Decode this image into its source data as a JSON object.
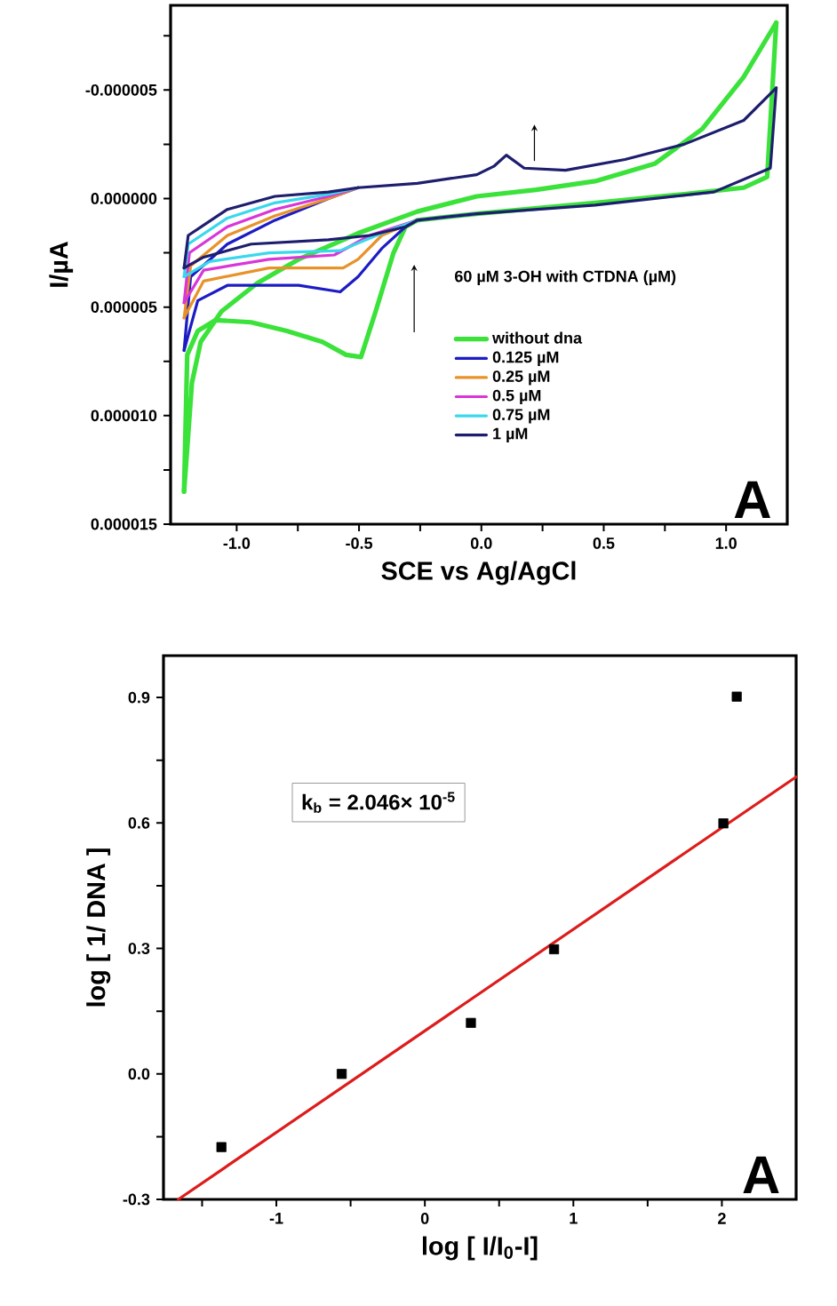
{
  "chart_data": [
    {
      "type": "line",
      "xlabel": "SCE vs Ag/AgCl",
      "ylabel": "I/µA",
      "legend_title": "60 µM 3-OH with CTDNA (µM)",
      "legend": "bottom right",
      "annotations": [
        "A"
      ],
      "xlim": [
        -1.27,
        1.25
      ],
      "ylim": [
        1.5e-05,
        -8.9e-06
      ],
      "xticks": [
        {
          "value": -1.0,
          "label": "-1.0"
        },
        {
          "value": -0.75,
          "label": null
        },
        {
          "value": -0.5,
          "label": "-0.5"
        },
        {
          "value": -0.25,
          "label": null
        },
        {
          "value": 0.0,
          "label": "0.0"
        },
        {
          "value": 0.25,
          "label": null
        },
        {
          "value": 0.5,
          "label": "0.5"
        },
        {
          "value": 0.75,
          "label": null
        },
        {
          "value": 1.0,
          "label": "1.0"
        }
      ],
      "yticks": [
        {
          "value": -7.5e-06,
          "label": null
        },
        {
          "value": -5e-06,
          "label": "-0.000005"
        },
        {
          "value": -2.5e-06,
          "label": null
        },
        {
          "value": 0,
          "label": "0.000000"
        },
        {
          "value": 2.5e-06,
          "label": null
        },
        {
          "value": 5e-06,
          "label": "0.000005"
        },
        {
          "value": 7.5e-06,
          "label": null
        },
        {
          "value": 1e-05,
          "label": "0.000010"
        },
        {
          "value": 1.25e-05,
          "label": null
        },
        {
          "value": 1.5e-05,
          "label": "0.000015"
        }
      ],
      "series": [
        {
          "name": "without dna",
          "color": "#3ae23a",
          "x": [
            -1.215,
            -1.202,
            -1.159,
            -1.086,
            -0.941,
            -0.795,
            -0.65,
            -0.553,
            -0.492,
            -0.432,
            -0.359,
            -0.31,
            -0.262,
            -0.019,
            0.465,
            0.829,
            1.072,
            1.168,
            1.205
          ],
          "values": [
            1.35e-05,
            7.2e-06,
            6.1e-06,
            5.6e-06,
            5.7e-06,
            6.1e-06,
            6.6e-06,
            7.2e-06,
            7.3e-06,
            5.2e-06,
            2.5e-06,
            1.3e-06,
            1e-06,
            7e-07,
            2e-07,
            -2e-07,
            -5e-07,
            -1e-06,
            -8.1e-06
          ]
        },
        {
          "color": "#3ae23a",
          "x": [
            -1.215,
            -1.202,
            -1.183,
            -1.147,
            -1.062,
            -0.916,
            -0.747,
            -0.504,
            -0.262,
            -0.019,
            0.223,
            0.465,
            0.708,
            0.902,
            1.072,
            1.205
          ],
          "values": [
            1.35e-05,
            1.15e-05,
            8.5e-06,
            6.6e-06,
            5.2e-06,
            3.9e-06,
            2.8e-06,
            1.6e-06,
            6e-07,
            -1e-07,
            -4e-07,
            -8e-07,
            -1.6e-06,
            -3.2e-06,
            -5.6e-06,
            -8.1e-06
          ]
        },
        {
          "name": "0.125 µM",
          "color": "#1c1cc4",
          "x": [
            -1.215,
            -1.159,
            -1.038,
            -0.747,
            -0.577,
            -0.504,
            -0.407,
            -0.31,
            -0.262,
            -0.019
          ],
          "values": [
            7e-06,
            4.7e-06,
            4e-06,
            4e-06,
            4.3e-06,
            3.6e-06,
            2.3e-06,
            1.3e-06,
            1e-06,
            7e-07
          ]
        },
        {
          "color": "#1c1cc4",
          "x": [
            -1.215,
            -1.188,
            -1.038,
            -0.844,
            -0.625,
            -0.504
          ],
          "values": [
            7e-06,
            3.6e-06,
            2.1e-06,
            1e-06,
            0.0,
            -5e-07
          ]
        },
        {
          "name": "0.25 µM",
          "color": "#e8922a",
          "x": [
            -1.215,
            -1.135,
            -0.868,
            -0.565,
            -0.504,
            -0.407,
            -0.262,
            -0.019
          ],
          "values": [
            5.5e-06,
            3.8e-06,
            3.2e-06,
            3.2e-06,
            2.8e-06,
            1.7e-06,
            1e-06,
            7e-07
          ]
        },
        {
          "color": "#e8922a",
          "x": [
            -1.215,
            -1.188,
            -1.038,
            -0.844,
            -0.625,
            -0.504
          ],
          "values": [
            5.5e-06,
            3.1e-06,
            1.7e-06,
            8e-07,
            0.0,
            -5e-07
          ]
        },
        {
          "name": "0.5 µM",
          "color": "#d936d9",
          "x": [
            -1.215,
            -1.135,
            -0.868,
            -0.601,
            -0.456,
            -0.262
          ],
          "values": [
            4.8e-06,
            3.3e-06,
            2.8e-06,
            2.6e-06,
            1.7e-06,
            1e-06
          ]
        },
        {
          "color": "#d936d9",
          "x": [
            -1.215,
            -1.193,
            -1.038,
            -0.844,
            -0.625,
            -0.504
          ],
          "values": [
            4.8e-06,
            2.5e-06,
            1.3e-06,
            5e-07,
            -1e-07,
            -5e-07
          ]
        },
        {
          "name": "0.75 µM",
          "color": "#3ad8ec",
          "x": [
            -1.215,
            -1.11,
            -0.868,
            -0.577,
            -0.407,
            -0.262,
            -0.019
          ],
          "values": [
            3.6e-06,
            2.9e-06,
            2.5e-06,
            2.4e-06,
            1.6e-06,
            1e-06,
            7e-07
          ]
        },
        {
          "color": "#3ad8ec",
          "x": [
            -1.215,
            -1.198,
            -1.038,
            -0.844,
            -0.625,
            -0.504
          ],
          "values": [
            3.6e-06,
            2.1e-06,
            9e-07,
            2e-07,
            -2e-07,
            -5e-07
          ]
        },
        {
          "name": "1 µM",
          "color": "#1e1e6e",
          "x": [
            -1.215,
            -1.135,
            -0.941,
            -0.625,
            -0.456,
            -0.31,
            -0.262,
            -0.019,
            0.465,
            0.95,
            1.181,
            1.205
          ],
          "values": [
            3.2e-06,
            2.7e-06,
            2.1e-06,
            1.9e-06,
            1.7e-06,
            1.3e-06,
            1e-06,
            7e-07,
            3e-07,
            -3e-07,
            -1.4e-06,
            -5.1e-06
          ]
        },
        {
          "color": "#1e1e6e",
          "x": [
            -1.215,
            -1.198,
            -1.038,
            -0.844,
            -0.625,
            -0.504,
            -0.262,
            -0.019,
            0.053,
            0.102,
            0.175,
            0.344,
            0.587,
            0.829,
            1.072,
            1.205
          ],
          "values": [
            3.2e-06,
            1.7e-06,
            5e-07,
            -1e-07,
            -3e-07,
            -5e-07,
            -7e-07,
            -1.1e-06,
            -1.5e-06,
            -2e-06,
            -1.4e-06,
            -1.3e-06,
            -1.8e-06,
            -2.5e-06,
            -3.6e-06,
            -5.1e-06
          ]
        }
      ]
    },
    {
      "type": "scatter",
      "xlabel": "log [ I/I$_{0}$-I]",
      "ylabel": "log [ 1/ DNA ]",
      "annotations": [
        "k$_{b}$ = 2.046× 10$^{-5}$",
        "A"
      ],
      "xlim": [
        -1.76,
        2.5
      ],
      "ylim": [
        -0.3,
        1.0
      ],
      "xticks": [
        {
          "value": -1.5,
          "label": null
        },
        -1,
        {
          "value": -0.5,
          "label": null
        },
        0,
        {
          "value": 0.5,
          "label": null
        },
        1,
        {
          "value": 1.5,
          "label": null
        },
        2
      ],
      "yticks": [
        {
          "value": -0.3,
          "label": "-0.3"
        },
        {
          "value": -0.15,
          "label": null
        },
        {
          "value": 0.0,
          "label": "0.0"
        },
        {
          "value": 0.15,
          "label": null
        },
        0.3,
        {
          "value": 0.45,
          "label": null
        },
        0.6,
        {
          "value": 0.75,
          "label": null
        },
        0.9
      ],
      "series": [
        {
          "color": "#000000",
          "marker": "square",
          "x": [
            -1.37,
            -0.56,
            0.31,
            0.87,
            2.01,
            2.1
          ],
          "values": [
            -0.175,
            0.0,
            0.122,
            0.298,
            0.599,
            0.902
          ]
        },
        {
          "type": "line",
          "color": "#dd1c1c",
          "x": [
            -1.66,
            2.5
          ],
          "values": [
            -0.3,
            0.71
          ]
        }
      ]
    }
  ]
}
